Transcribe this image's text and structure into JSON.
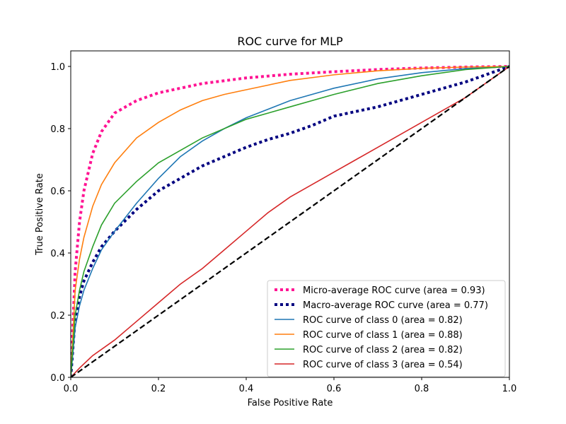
{
  "chart_data": {
    "type": "line",
    "title": "ROC curve for MLP",
    "xlabel": "False Positive Rate",
    "ylabel": "True Positive Rate",
    "xlim": [
      0.0,
      1.0
    ],
    "ylim": [
      0.0,
      1.05
    ],
    "xticks": [
      "0.0",
      "0.2",
      "0.4",
      "0.6",
      "0.8",
      "1.0"
    ],
    "yticks": [
      "0.0",
      "0.2",
      "0.4",
      "0.6",
      "0.8",
      "1.0"
    ],
    "grid": false,
    "legend_position": "lower right",
    "series": [
      {
        "name": "Micro-average ROC curve (area = 0.93)",
        "color": "#ff1493",
        "style": "dotted",
        "x": [
          0,
          0.01,
          0.02,
          0.03,
          0.05,
          0.07,
          0.1,
          0.15,
          0.2,
          0.3,
          0.4,
          0.5,
          0.6,
          0.7,
          0.8,
          0.9,
          1.0
        ],
        "y": [
          0,
          0.34,
          0.5,
          0.6,
          0.72,
          0.79,
          0.85,
          0.89,
          0.915,
          0.945,
          0.963,
          0.975,
          0.983,
          0.99,
          0.995,
          0.998,
          1.0
        ]
      },
      {
        "name": "Macro-average ROC curve (area = 0.77)",
        "color": "#000080",
        "style": "dotted",
        "x": [
          0,
          0.01,
          0.02,
          0.03,
          0.05,
          0.07,
          0.1,
          0.15,
          0.2,
          0.25,
          0.3,
          0.35,
          0.4,
          0.45,
          0.5,
          0.55,
          0.6,
          0.7,
          0.8,
          0.9,
          1.0
        ],
        "y": [
          0,
          0.19,
          0.26,
          0.31,
          0.37,
          0.42,
          0.47,
          0.54,
          0.6,
          0.64,
          0.68,
          0.71,
          0.74,
          0.765,
          0.785,
          0.81,
          0.84,
          0.87,
          0.91,
          0.95,
          1.0
        ]
      },
      {
        "name": "ROC curve of class 0 (area = 0.82)",
        "color": "#1f77b4",
        "style": "solid",
        "x": [
          0,
          0.01,
          0.02,
          0.03,
          0.05,
          0.07,
          0.1,
          0.15,
          0.2,
          0.25,
          0.3,
          0.35,
          0.4,
          0.5,
          0.6,
          0.7,
          0.8,
          0.9,
          1.0
        ],
        "y": [
          0,
          0.16,
          0.23,
          0.28,
          0.35,
          0.41,
          0.47,
          0.56,
          0.64,
          0.71,
          0.76,
          0.8,
          0.835,
          0.89,
          0.93,
          0.96,
          0.98,
          0.993,
          1.0
        ]
      },
      {
        "name": "ROC curve of class 1 (area = 0.88)",
        "color": "#ff7f0e",
        "style": "solid",
        "x": [
          0,
          0.01,
          0.02,
          0.03,
          0.05,
          0.07,
          0.1,
          0.15,
          0.2,
          0.25,
          0.3,
          0.35,
          0.4,
          0.5,
          0.6,
          0.7,
          0.8,
          0.9,
          1.0
        ],
        "y": [
          0,
          0.28,
          0.38,
          0.45,
          0.55,
          0.62,
          0.69,
          0.77,
          0.82,
          0.86,
          0.89,
          0.91,
          0.925,
          0.955,
          0.973,
          0.986,
          0.994,
          0.998,
          1.0
        ]
      },
      {
        "name": "ROC curve of class 2 (area = 0.82)",
        "color": "#2ca02c",
        "style": "solid",
        "x": [
          0,
          0.01,
          0.02,
          0.03,
          0.05,
          0.07,
          0.1,
          0.15,
          0.2,
          0.25,
          0.3,
          0.35,
          0.4,
          0.5,
          0.6,
          0.7,
          0.8,
          0.9,
          1.0
        ],
        "y": [
          0,
          0.2,
          0.28,
          0.34,
          0.42,
          0.49,
          0.56,
          0.63,
          0.69,
          0.73,
          0.77,
          0.8,
          0.83,
          0.87,
          0.91,
          0.945,
          0.97,
          0.99,
          1.0
        ]
      },
      {
        "name": "ROC curve of class 3 (area = 0.54)",
        "color": "#d62728",
        "style": "solid",
        "x": [
          0,
          0.02,
          0.05,
          0.1,
          0.15,
          0.2,
          0.25,
          0.3,
          0.35,
          0.4,
          0.45,
          0.5,
          0.55,
          0.6,
          0.65,
          0.7,
          0.75,
          0.8,
          0.85,
          0.9,
          0.95,
          1.0
        ],
        "y": [
          0,
          0.03,
          0.07,
          0.12,
          0.18,
          0.24,
          0.3,
          0.35,
          0.41,
          0.47,
          0.53,
          0.58,
          0.62,
          0.66,
          0.7,
          0.74,
          0.78,
          0.82,
          0.86,
          0.9,
          0.95,
          1.0
        ]
      },
      {
        "name": "",
        "color": "#000000",
        "style": "dashed",
        "x": [
          0,
          1
        ],
        "y": [
          0,
          1
        ]
      }
    ]
  }
}
